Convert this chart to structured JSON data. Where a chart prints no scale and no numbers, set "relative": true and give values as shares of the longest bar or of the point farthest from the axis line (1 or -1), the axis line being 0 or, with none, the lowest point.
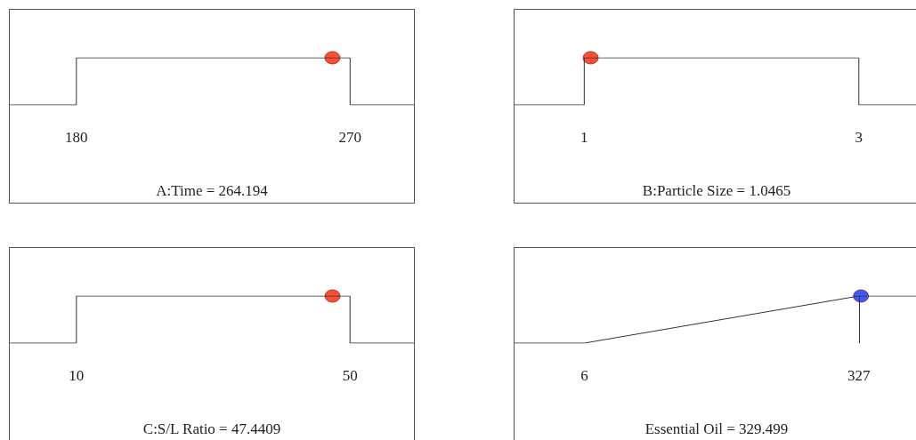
{
  "chart_data": [
    {
      "type": "line",
      "relative": true,
      "xlabel": "A:Time = 264.194",
      "xlim": [
        158.1,
        291
      ],
      "xticks": [
        180,
        270
      ],
      "series": [
        {
          "type": "line",
          "color": "#333333",
          "x": [
            158.1,
            180,
            180,
            270,
            270,
            291
          ],
          "values": [
            0,
            0,
            1,
            1,
            0,
            0
          ]
        },
        {
          "type": "scatter",
          "color": "#ff2200",
          "marker": "circle",
          "x": [
            264.194
          ],
          "values": [
            1
          ]
        }
      ]
    },
    {
      "type": "line",
      "relative": true,
      "xlabel": "B:Particle Size = 1.0465",
      "xlim": [
        0.492,
        3.436
      ],
      "xticks": [
        1,
        3
      ],
      "series": [
        {
          "type": "line",
          "color": "#333333",
          "x": [
            0.492,
            1,
            1,
            3,
            3,
            3.436
          ],
          "values": [
            0,
            0,
            1,
            1,
            0,
            0
          ]
        },
        {
          "type": "scatter",
          "color": "#ff2200",
          "marker": "circle",
          "x": [
            1.0465
          ],
          "values": [
            1
          ]
        }
      ]
    },
    {
      "type": "line",
      "relative": true,
      "xlabel": "C:S/L Ratio = 47.4409",
      "xlim": [
        0.26,
        59.35
      ],
      "xticks": [
        10,
        50
      ],
      "series": [
        {
          "type": "line",
          "color": "#333333",
          "x": [
            0.26,
            10,
            10,
            50,
            50,
            59.35
          ],
          "values": [
            0,
            0,
            1,
            1,
            0,
            0
          ]
        },
        {
          "type": "scatter",
          "color": "#ff2200",
          "marker": "circle",
          "x": [
            47.4409
          ],
          "values": [
            1
          ]
        }
      ]
    },
    {
      "type": "line",
      "relative": true,
      "xlabel": "Essential Oil = 329.499",
      "xlim": [
        -75.6,
        397
      ],
      "xticks": [
        6,
        327
      ],
      "ref_lines": [
        {
          "axis": "x",
          "value": 327,
          "color": "#333333"
        }
      ],
      "series": [
        {
          "type": "line",
          "color": "#333333",
          "x": [
            -75.6,
            6,
            327,
            397
          ],
          "values": [
            0,
            0,
            1,
            1
          ]
        },
        {
          "type": "scatter",
          "color": "#1030ff",
          "marker": "circle",
          "x": [
            329.499
          ],
          "values": [
            1
          ]
        }
      ]
    }
  ]
}
